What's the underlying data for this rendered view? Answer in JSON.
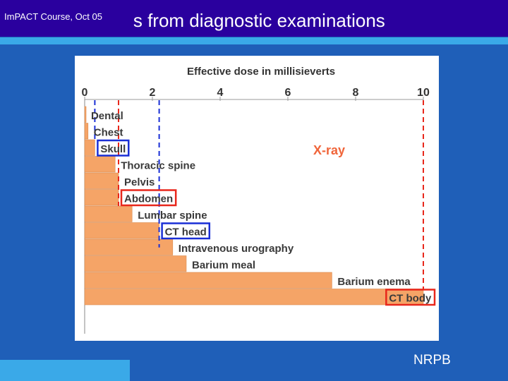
{
  "slide": {
    "title": "Effective doses from diagnostic examinations",
    "footer": "ImPACT Course, Oct 05",
    "source": "NRPB"
  },
  "colors": {
    "background": "#1f5fb8",
    "title_bar": "#2a009e",
    "accent_rule": "#3aa9e8",
    "bar": "#f5a467",
    "bar_outline": "#d98a4f",
    "highlight_red": "#e8271b",
    "highlight_blue": "#1a2fd6",
    "xray_label": "#f0653a"
  },
  "chart_data": {
    "type": "bar",
    "orientation": "horizontal",
    "xlabel": "Effective dose in millisieverts",
    "xlim": [
      0,
      10
    ],
    "xticks": [
      "0",
      "2",
      "4",
      "6",
      "8",
      "10"
    ],
    "categories": [
      "Dental",
      "Chest",
      "Skull",
      "Thoracic spine",
      "Pelvis",
      "Abdomen",
      "Lumbar spine",
      "CT head",
      "Intravenous urography",
      "Barium meal",
      "Barium enema",
      "CT body"
    ],
    "values": [
      0.02,
      0.1,
      0.3,
      0.9,
      1.0,
      1.0,
      1.4,
      2.2,
      2.6,
      3.0,
      7.3,
      10.0
    ],
    "highlighted": [
      {
        "category": "Skull",
        "color": "blue"
      },
      {
        "category": "Abdomen",
        "color": "red"
      },
      {
        "category": "CT head",
        "color": "blue"
      },
      {
        "category": "CT body",
        "color": "red"
      }
    ],
    "reference_lines": [
      {
        "value": 0.3,
        "color": "blue"
      },
      {
        "value": 1.0,
        "color": "red"
      },
      {
        "value": 2.2,
        "color": "blue"
      },
      {
        "value": 10.0,
        "color": "red"
      }
    ],
    "annotation": "X-ray"
  }
}
